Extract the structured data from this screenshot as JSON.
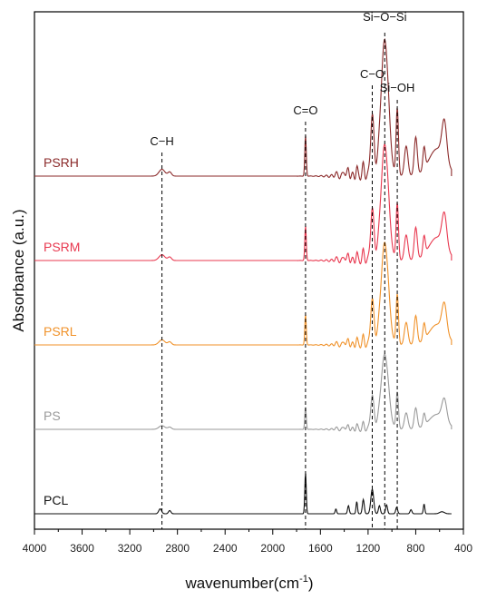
{
  "chart_data": {
    "type": "line",
    "xlabel": "wavenumber(cm",
    "xlabel_sup": "-1",
    "xlabel_close": ")",
    "ylabel": "Absorbance (a.u.)",
    "xlim": [
      4000,
      400
    ],
    "x_reversed": true,
    "xticks": [
      "4000",
      "3600",
      "3200",
      "2800",
      "2400",
      "2000",
      "1600",
      "1200",
      "800",
      "400"
    ],
    "xtick_values": [
      4000,
      3600,
      3200,
      2800,
      2400,
      2000,
      1600,
      1200,
      800,
      400
    ],
    "y_ticks_shown": false,
    "series": [
      {
        "name": "PSRH",
        "color": "#8b2a2a",
        "offset": 4,
        "scale": 1.0
      },
      {
        "name": "PSRM",
        "color": "#e8384f",
        "offset": 3,
        "scale": 0.85
      },
      {
        "name": "PSRL",
        "color": "#f0922a",
        "offset": 2,
        "scale": 0.75
      },
      {
        "name": "PS",
        "color": "#9a9a9a",
        "offset": 1,
        "scale": 0.55
      },
      {
        "name": "PCL",
        "color": "#111111",
        "offset": 0,
        "scale": 0.4,
        "pcl": true
      }
    ],
    "peak_annotations": [
      {
        "label": "C−H",
        "wavenumber": 2930
      },
      {
        "label": "C=O",
        "wavenumber": 1725
      },
      {
        "label": "C−O",
        "wavenumber": 1165
      },
      {
        "label": "Si−O−Si",
        "wavenumber": 1060
      },
      {
        "label": "Si−OH",
        "wavenumber": 955
      }
    ]
  }
}
